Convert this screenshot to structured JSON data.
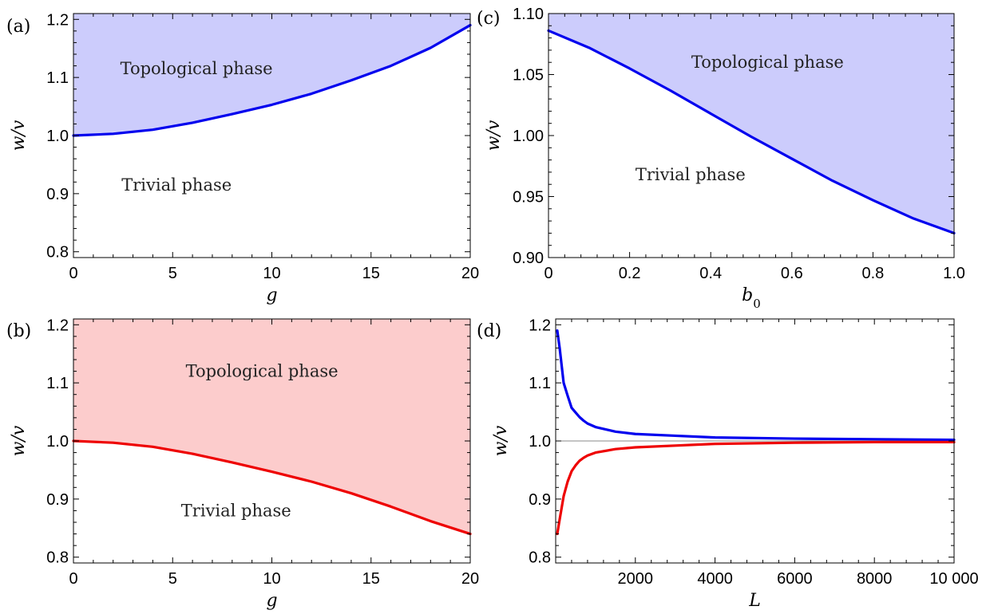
{
  "chart_data": [
    {
      "id": "a",
      "panel_label": "(a)",
      "type": "area",
      "xlabel": "g",
      "ylabel": "w/v",
      "xlim": [
        0,
        20
      ],
      "ylim": [
        0.79,
        1.21
      ],
      "xticks": [
        0,
        5,
        10,
        15,
        20
      ],
      "xtick_labels": [
        "0",
        "5",
        "10",
        "15",
        "20"
      ],
      "yticks": [
        0.8,
        0.9,
        1.0,
        1.1,
        1.2
      ],
      "ytick_labels": [
        "0.8",
        "0.9",
        "1.0",
        "1.1",
        "1.2"
      ],
      "shade": "above",
      "fill_color": "#ccccfc",
      "series": [
        {
          "color": "#0000ee",
          "x": [
            0,
            2,
            4,
            6,
            8,
            10,
            12,
            14,
            16,
            18,
            20
          ],
          "y": [
            1.0,
            1.003,
            1.01,
            1.022,
            1.037,
            1.053,
            1.072,
            1.095,
            1.12,
            1.151,
            1.19
          ]
        }
      ],
      "annotations": [
        {
          "text": "Topological phase",
          "x": 6.2,
          "y": 1.115
        },
        {
          "text": "Trivial phase",
          "x": 5.2,
          "y": 0.915
        }
      ]
    },
    {
      "id": "c",
      "panel_label": "(c)",
      "type": "area",
      "xlabel": "b_0",
      "ylabel": "w/v",
      "xlim": [
        0,
        1
      ],
      "ylim": [
        0.9,
        1.1
      ],
      "xticks": [
        0,
        0.2,
        0.4,
        0.6,
        0.8,
        1.0
      ],
      "xtick_labels": [
        "0",
        "0.2",
        "0.4",
        "0.6",
        "0.8",
        "1.0"
      ],
      "yticks": [
        0.9,
        0.95,
        1.0,
        1.05,
        1.1
      ],
      "ytick_labels": [
        "0.90",
        "0.95",
        "1.00",
        "1.05",
        "1.10"
      ],
      "shade": "above",
      "fill_color": "#ccccfc",
      "series": [
        {
          "color": "#0000ee",
          "x": [
            0,
            0.1,
            0.2,
            0.3,
            0.4,
            0.5,
            0.6,
            0.7,
            0.8,
            0.9,
            1.0
          ],
          "y": [
            1.086,
            1.072,
            1.055,
            1.037,
            1.018,
            0.999,
            0.981,
            0.963,
            0.947,
            0.932,
            0.92
          ]
        }
      ],
      "annotations": [
        {
          "text": "Topological phase",
          "x": 0.54,
          "y": 1.06
        },
        {
          "text": "Trivial phase",
          "x": 0.35,
          "y": 0.968
        }
      ]
    },
    {
      "id": "b",
      "panel_label": "(b)",
      "type": "area",
      "xlabel": "g",
      "ylabel": "w/v",
      "xlim": [
        0,
        20
      ],
      "ylim": [
        0.79,
        1.21
      ],
      "xticks": [
        0,
        5,
        10,
        15,
        20
      ],
      "xtick_labels": [
        "0",
        "5",
        "10",
        "15",
        "20"
      ],
      "yticks": [
        0.8,
        0.9,
        1.0,
        1.1,
        1.2
      ],
      "ytick_labels": [
        "0.8",
        "0.9",
        "1.0",
        "1.1",
        "1.2"
      ],
      "shade": "above",
      "fill_color": "#fccccc",
      "series": [
        {
          "color": "#ee0000",
          "x": [
            0,
            2,
            4,
            6,
            8,
            10,
            12,
            14,
            16,
            18,
            20
          ],
          "y": [
            1.0,
            0.997,
            0.99,
            0.978,
            0.963,
            0.947,
            0.93,
            0.91,
            0.887,
            0.862,
            0.84
          ]
        }
      ],
      "annotations": [
        {
          "text": "Topological phase",
          "x": 9.5,
          "y": 1.12
        },
        {
          "text": "Trivial phase",
          "x": 8.2,
          "y": 0.88
        }
      ]
    },
    {
      "id": "d",
      "panel_label": "(d)",
      "type": "line",
      "xlabel": "L",
      "ylabel": "w/v",
      "xlim": [
        0,
        10000
      ],
      "ylim": [
        0.79,
        1.21
      ],
      "xticks": [
        2000,
        4000,
        6000,
        8000,
        10000
      ],
      "xtick_labels": [
        "2000",
        "4000",
        "6000",
        "8000",
        "10 000"
      ],
      "yticks": [
        0.8,
        0.9,
        1.0,
        1.1,
        1.2
      ],
      "ytick_labels": [
        "0.8",
        "0.9",
        "1.0",
        "1.1",
        "1.2"
      ],
      "reference_line_y": 1.0,
      "series": [
        {
          "color": "#0000ee",
          "x": [
            40,
            100,
            200,
            300,
            400,
            500,
            600,
            700,
            800,
            1000,
            1500,
            2000,
            3000,
            4000,
            6000,
            8000,
            10000
          ],
          "y": [
            1.19,
            1.16,
            1.1,
            1.078,
            1.057,
            1.049,
            1.041,
            1.035,
            1.03,
            1.024,
            1.016,
            1.012,
            1.009,
            1.006,
            1.004,
            1.003,
            1.002
          ]
        },
        {
          "color": "#ee0000",
          "x": [
            40,
            100,
            200,
            300,
            400,
            500,
            600,
            700,
            800,
            1000,
            1500,
            2000,
            3000,
            4000,
            6000,
            8000,
            10000
          ],
          "y": [
            0.84,
            0.865,
            0.905,
            0.93,
            0.948,
            0.958,
            0.966,
            0.971,
            0.975,
            0.98,
            0.986,
            0.989,
            0.992,
            0.995,
            0.997,
            0.998,
            0.998
          ]
        }
      ]
    }
  ]
}
